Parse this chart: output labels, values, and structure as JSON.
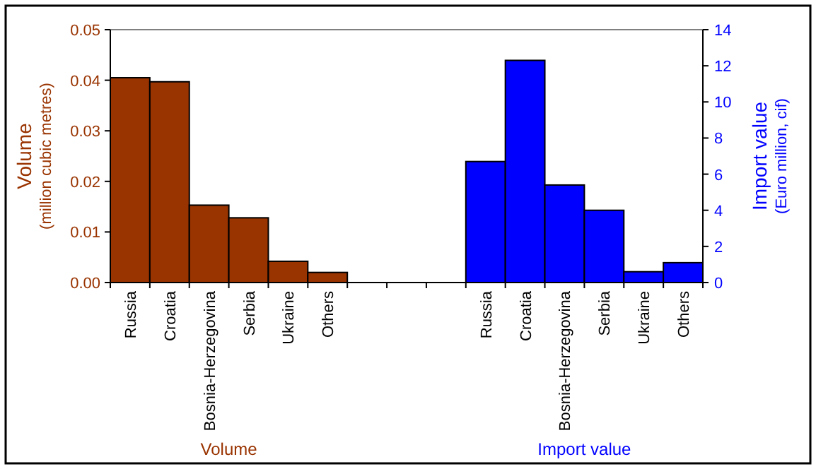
{
  "chart_data": {
    "type": "bar",
    "ylabel": "Volume\n(million cubic metres)",
    "y2label": "Import value\n(Euro million, cif)",
    "categories": [
      "Russia",
      "Croatia",
      "Bosnia-Herzegovina",
      "Serbia",
      "Ukraine",
      "Others",
      null,
      null,
      null,
      "Russia",
      "Croatia",
      "Bosnia-Herzegovina",
      "Serbia",
      "Ukraine",
      "Others"
    ],
    "series": [
      {
        "color": "#993300",
        "values": [
          0.0405,
          0.0397,
          0.0153,
          0.0128,
          0.0042,
          0.002,
          null,
          null,
          null,
          null,
          null,
          null,
          null,
          null,
          null
        ]
      },
      {
        "color": "#0000ff",
        "axis": "y2",
        "values": [
          null,
          null,
          null,
          null,
          null,
          null,
          null,
          null,
          null,
          6.7,
          12.3,
          5.4,
          4.0,
          0.6,
          1.1
        ]
      }
    ],
    "ylim": [
      0,
      0.05
    ],
    "yticks": [
      {
        "value": 0,
        "label": "0.00"
      },
      0.01,
      0.02,
      0.03,
      0.04,
      0.05
    ],
    "y2lim": [
      0,
      14
    ],
    "y2ticks": [
      0,
      2,
      4,
      6,
      8,
      10,
      12,
      14
    ],
    "annotations": [
      "Volume",
      "Import value"
    ]
  }
}
